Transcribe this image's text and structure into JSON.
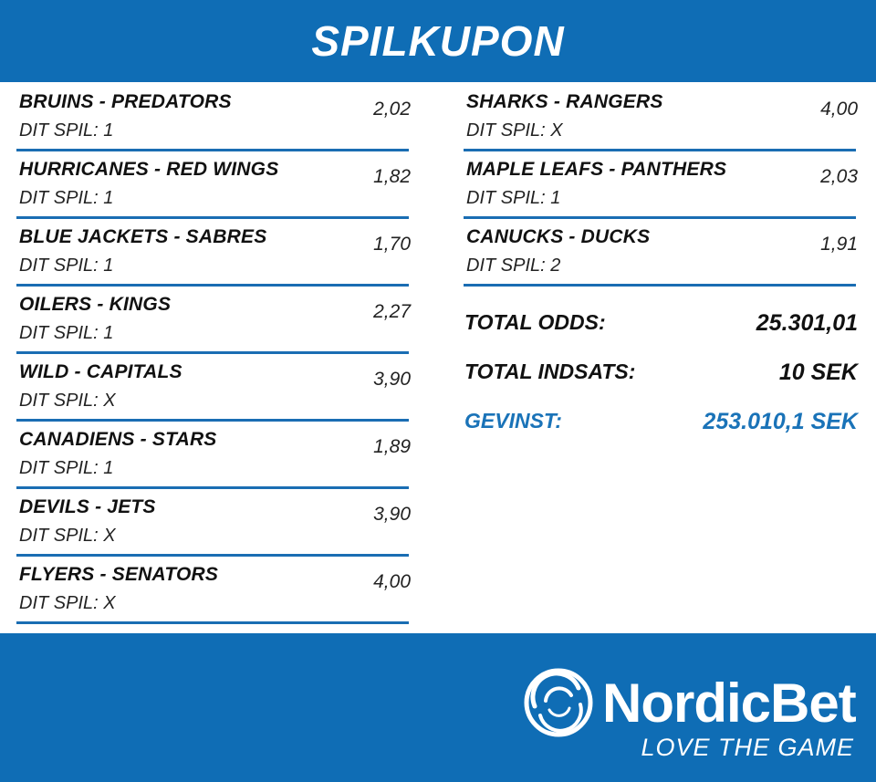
{
  "header": {
    "title": "SPILKUPON"
  },
  "bets_left": [
    {
      "match": "BRUINS - PREDATORS",
      "pick": "DIT SPIL: 1",
      "odds": "2,02"
    },
    {
      "match": "HURRICANES - RED WINGS",
      "pick": "DIT SPIL: 1",
      "odds": "1,82"
    },
    {
      "match": "BLUE JACKETS - SABRES",
      "pick": "DIT SPIL: 1",
      "odds": "1,70"
    },
    {
      "match": "OILERS - KINGS",
      "pick": "DIT SPIL: 1",
      "odds": "2,27"
    },
    {
      "match": "WILD - CAPITALS",
      "pick": "DIT SPIL: X",
      "odds": "3,90"
    },
    {
      "match": "CANADIENS - STARS",
      "pick": "DIT SPIL: 1",
      "odds": "1,89"
    },
    {
      "match": "DEVILS - JETS",
      "pick": "DIT SPIL: X",
      "odds": "3,90"
    },
    {
      "match": "FLYERS - SENATORS",
      "pick": "DIT SPIL: X",
      "odds": "4,00"
    }
  ],
  "bets_right": [
    {
      "match": "SHARKS - RANGERS",
      "pick": "DIT SPIL: X",
      "odds": "4,00"
    },
    {
      "match": "MAPLE LEAFS - PANTHERS",
      "pick": "DIT SPIL: 1",
      "odds": "2,03"
    },
    {
      "match": "CANUCKS - DUCKS",
      "pick": "DIT SPIL: 2",
      "odds": "1,91"
    }
  ],
  "totals": {
    "odds_label": "TOTAL ODDS:",
    "odds_value": "25.301,01",
    "stake_label": "TOTAL INDSATS:",
    "stake_value": "10 SEK",
    "win_label": "GEVINST:",
    "win_value": "253.010,1 SEK"
  },
  "footer": {
    "brand": "NordicBet",
    "tagline": "LOVE THE GAME",
    "logo_icon": "nordicbet-swirl-icon"
  },
  "colors": {
    "brand_blue": "#0f6db5",
    "divider_blue": "#1a6db3",
    "win_blue": "#1a73b8"
  }
}
